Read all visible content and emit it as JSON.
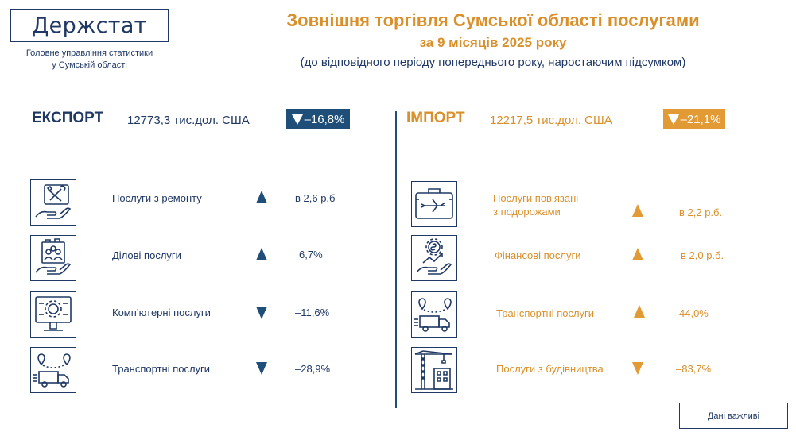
{
  "header": {
    "logo_text": "Держстат",
    "org_line1": "Головне управління статистики",
    "org_line2": "у Сумській області",
    "title": "Зовнішня торгівля Сумської області послугами",
    "subtitle": "за 9 місяців 2025 року",
    "note": "(до відповідного періоду попереднього року, наростаючим підсумком)"
  },
  "export": {
    "heading": "ЕКСПОРТ",
    "total": "12773,3 тис.дол. США",
    "change": "–16,8%",
    "change_direction": "down",
    "color": "#1f4e79",
    "items": [
      {
        "label": "Послуги з ремонту",
        "value": "в 2,6 р.б",
        "direction": "up",
        "icon": "repair-tools-hand-icon"
      },
      {
        "label": "Ділові послуги",
        "value": "6,7%",
        "direction": "up",
        "icon": "business-hand-icon"
      },
      {
        "label": "Комп’ютерні послуги",
        "value": "–11,6%",
        "direction": "down",
        "icon": "computer-gear-icon"
      },
      {
        "label": "Транспортні послуги",
        "value": "–28,9%",
        "direction": "down",
        "icon": "delivery-truck-icon"
      }
    ]
  },
  "import": {
    "heading": "ІМПОРТ",
    "total": "12217,5 тис.дол. США",
    "change": "–21,1%",
    "change_direction": "down",
    "color": "#e19a34",
    "items": [
      {
        "label_line1": "Послуги пов’язані",
        "label_line2": "з подорожами",
        "value": "в 2,2 р.б.",
        "direction": "up",
        "icon": "travel-suitcase-icon"
      },
      {
        "label": "Фінансові послуги",
        "value": "в 2,0 р.б.",
        "direction": "up",
        "icon": "finance-growth-icon"
      },
      {
        "label": "Транспортні послуги",
        "value": "44,0%",
        "direction": "up",
        "icon": "delivery-truck-icon"
      },
      {
        "label": "Послуги з будівництва",
        "value": "–83,7%",
        "direction": "down",
        "icon": "construction-crane-icon"
      }
    ]
  },
  "footer": {
    "button_label": "Дані важливі"
  }
}
